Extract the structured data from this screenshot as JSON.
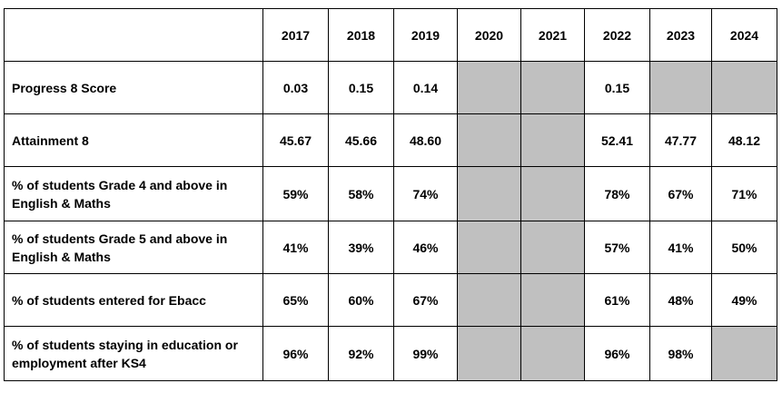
{
  "table": {
    "headers": [
      "",
      "2017",
      "2018",
      "2019",
      "2020",
      "2021",
      "2022",
      "2023",
      "2024"
    ],
    "rows": [
      {
        "label": "Progress 8 Score",
        "values": [
          "0.03",
          "0.15",
          "0.14",
          null,
          null,
          "0.15",
          null,
          null
        ]
      },
      {
        "label": "Attainment 8",
        "values": [
          "45.67",
          "45.66",
          "48.60",
          null,
          null,
          "52.41",
          "47.77",
          "48.12"
        ]
      },
      {
        "label": "% of students Grade 4 and above in English & Maths",
        "values": [
          "59%",
          "58%",
          "74%",
          null,
          null,
          "78%",
          "67%",
          "71%"
        ]
      },
      {
        "label": "% of students Grade 5 and above in English & Maths",
        "values": [
          "41%",
          "39%",
          "46%",
          null,
          null,
          "57%",
          "41%",
          "50%"
        ]
      },
      {
        "label": "% of students entered for Ebacc",
        "values": [
          "65%",
          "60%",
          "67%",
          null,
          null,
          "61%",
          "48%",
          "49%"
        ]
      },
      {
        "label": "% of students staying in education or employment after KS4",
        "values": [
          "96%",
          "92%",
          "99%",
          null,
          null,
          "96%",
          "98%",
          null
        ]
      }
    ],
    "colors": {
      "unavailable_cell": "#c0c0c0",
      "border": "#000000"
    }
  }
}
